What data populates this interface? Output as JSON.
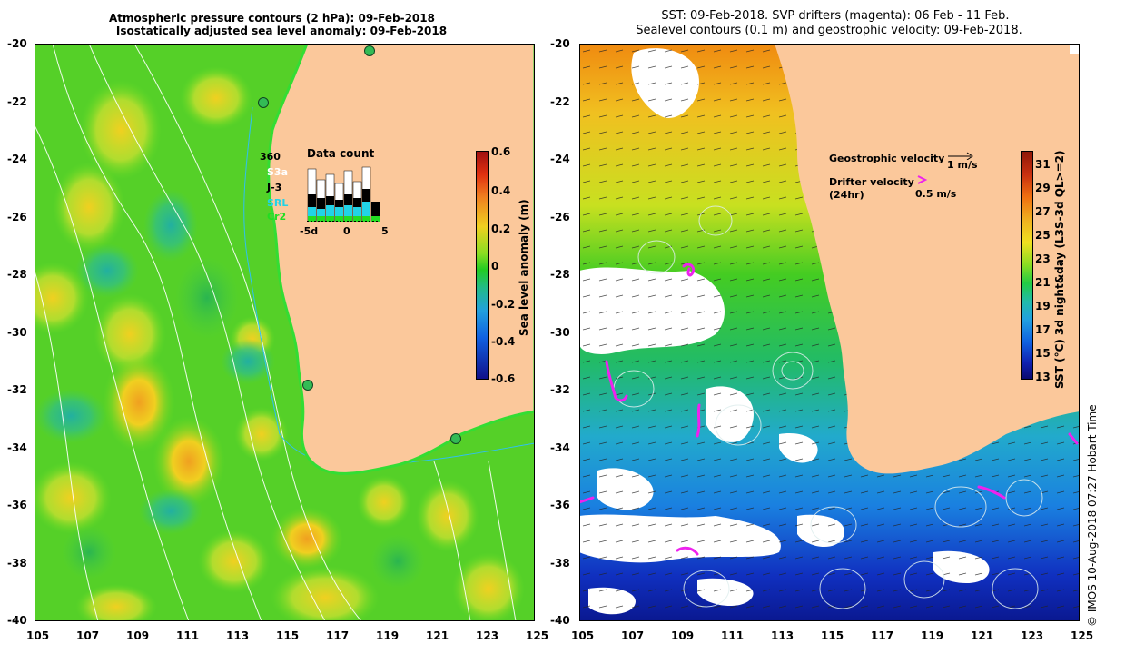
{
  "left_panel": {
    "title_line1": "Atmospheric pressure contours (2 hPa): 09-Feb-2018",
    "title_line2": "Isostatically adjusted sea level anomaly: 09-Feb-2018",
    "y_ticks": [
      "-20",
      "-22",
      "-24",
      "-26",
      "-28",
      "-30",
      "-32",
      "-34",
      "-36",
      "-38",
      "-40"
    ],
    "x_ticks": [
      "105",
      "107",
      "109",
      "111",
      "113",
      "115",
      "117",
      "119",
      "121",
      "123",
      "125"
    ],
    "data_count": {
      "title": "Data count",
      "max_label": "360",
      "sources": [
        {
          "name": "S3a",
          "color": "#ffffff"
        },
        {
          "name": "J-3",
          "color": "#000000"
        },
        {
          "name": "SRL",
          "color": "#22d3e6"
        },
        {
          "name": "Cr2",
          "color": "#22dd22"
        }
      ],
      "x_labels": [
        "-5d",
        "0",
        "5"
      ]
    },
    "colorbar": {
      "label": "Sea level anomaly (m)",
      "ticks": [
        "0.6",
        "0.4",
        "0.2",
        "0",
        "-0.2",
        "-0.4",
        "-0.6"
      ]
    }
  },
  "right_panel": {
    "title_line1": "SST: 09-Feb-2018. SVP drifters (magenta): 06 Feb - 11 Feb.",
    "title_line2": "Sealevel contours (0.1 m) and geostrophic velocity: 09-Feb-2018.",
    "y_ticks": [
      "-20",
      "-22",
      "-24",
      "-26",
      "-28",
      "-30",
      "-32",
      "-34",
      "-36",
      "-38",
      "-40"
    ],
    "x_ticks": [
      "105",
      "107",
      "109",
      "111",
      "113",
      "115",
      "117",
      "119",
      "121",
      "123",
      "125"
    ],
    "legend": {
      "geo_label": "Geostrophic velocity",
      "geo_scale": "1 m/s",
      "drifter_label": "Drifter velocity",
      "drifter_sub": "(24hr)",
      "drifter_scale": "0.5 m/s"
    },
    "colorbar": {
      "label": "SST (°C) 3d night&day (L3S-3d QL>=2)",
      "ticks": [
        "31",
        "29",
        "27",
        "25",
        "23",
        "21",
        "19",
        "17",
        "15",
        "13"
      ]
    }
  },
  "footer": {
    "credit": "© IMOS 10-Aug-2018 07:27 Hobart Time"
  },
  "colors": {
    "land": "#fbc89b",
    "magenta": "#ee22ee"
  }
}
